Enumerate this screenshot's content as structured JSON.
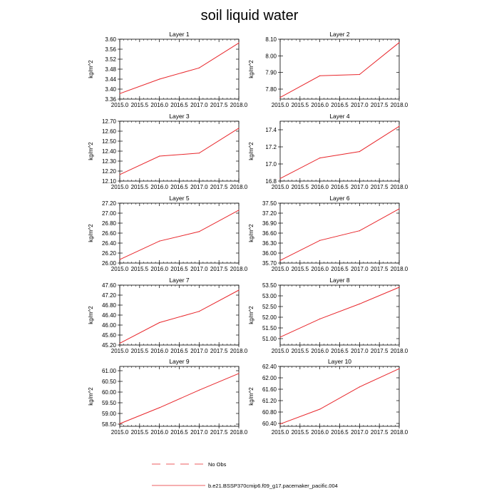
{
  "chart_data": {
    "type": "line",
    "title": "soil liquid water",
    "ylabel": "kg/m^2",
    "x": [
      2015.0,
      2016.0,
      2017.0,
      2018.0
    ],
    "xticks": [
      "2015.0",
      "2015.5",
      "2016.0",
      "2016.5",
      "2017.0",
      "2017.5",
      "2018.0"
    ],
    "line_color": "#e8262b",
    "panels": [
      {
        "title": "Layer 1",
        "ylim": [
          3.36,
          3.6
        ],
        "yticks": [
          "3.36",
          "3.40",
          "3.44",
          "3.48",
          "3.52",
          "3.56",
          "3.60"
        ],
        "values": [
          3.382,
          3.44,
          3.485,
          3.585
        ]
      },
      {
        "title": "Layer 2",
        "ylim": [
          7.74,
          8.1
        ],
        "yticks": [
          "7.80",
          "7.90",
          "8.00",
          "8.10"
        ],
        "values": [
          7.75,
          7.88,
          7.888,
          8.08
        ]
      },
      {
        "title": "Layer 3",
        "ylim": [
          12.1,
          12.7
        ],
        "yticks": [
          "12.10",
          "12.20",
          "12.30",
          "12.40",
          "12.50",
          "12.60",
          "12.70"
        ],
        "values": [
          12.165,
          12.35,
          12.38,
          12.63
        ]
      },
      {
        "title": "Layer 4",
        "ylim": [
          16.8,
          17.5
        ],
        "yticks": [
          "16.8",
          "17.0",
          "17.2",
          "17.4"
        ],
        "values": [
          16.83,
          17.07,
          17.145,
          17.44
        ]
      },
      {
        "title": "Layer 5",
        "ylim": [
          26.0,
          27.2
        ],
        "yticks": [
          "26.00",
          "26.20",
          "26.40",
          "26.60",
          "26.80",
          "27.00",
          "27.20"
        ],
        "values": [
          26.07,
          26.44,
          26.63,
          27.06
        ]
      },
      {
        "title": "Layer 6",
        "ylim": [
          35.7,
          37.5
        ],
        "yticks": [
          "35.70",
          "36.00",
          "36.30",
          "36.60",
          "36.90",
          "37.20",
          "37.50"
        ],
        "values": [
          35.78,
          36.38,
          36.67,
          37.33
        ]
      },
      {
        "title": "Layer 7",
        "ylim": [
          45.2,
          47.6
        ],
        "yticks": [
          "45.20",
          "45.60",
          "46.00",
          "46.40",
          "46.80",
          "47.20",
          "47.60"
        ],
        "values": [
          45.27,
          46.1,
          46.55,
          47.4
        ]
      },
      {
        "title": "Layer 8",
        "ylim": [
          50.7,
          53.5
        ],
        "yticks": [
          "51.00",
          "51.50",
          "52.00",
          "52.50",
          "53.00",
          "53.50"
        ],
        "values": [
          51.07,
          51.92,
          52.62,
          53.4
        ]
      },
      {
        "title": "Layer 9",
        "ylim": [
          58.4,
          61.2
        ],
        "yticks": [
          "58.50",
          "59.00",
          "59.50",
          "60.00",
          "60.50",
          "61.00"
        ],
        "values": [
          58.52,
          59.27,
          60.09,
          60.87
        ]
      },
      {
        "title": "Layer 10",
        "ylim": [
          60.3,
          62.4
        ],
        "yticks": [
          "60.40",
          "60.80",
          "61.20",
          "61.60",
          "62.00",
          "62.40"
        ],
        "values": [
          60.38,
          60.9,
          61.68,
          62.32
        ]
      }
    ],
    "legend": [
      {
        "label": "No Obs",
        "style": "dashed"
      },
      {
        "label": "b.e21.BSSP370cmip6.f09_g17.pacemaker_pacific.004",
        "style": "solid"
      }
    ]
  }
}
